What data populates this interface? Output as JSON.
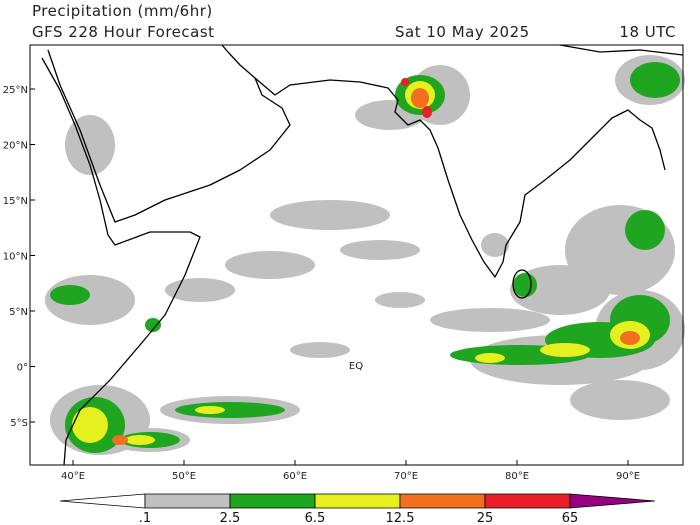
{
  "header": {
    "title": "Precipitation (mm/6hr)",
    "subtitle": "GFS 228 Hour Forecast",
    "date": "Sat 10 May 2025",
    "time": "18 UTC"
  },
  "map": {
    "lat_labels": [
      "25°N",
      "20°N",
      "15°N",
      "10°N",
      "5°N",
      "0°",
      "5°S"
    ],
    "lon_labels": [
      "40°E",
      "50°E",
      "60°E",
      "70°E",
      "80°E",
      "90°E"
    ],
    "equator_label": "EQ"
  },
  "colorbar": {
    "labels": [
      ".1",
      "2.5",
      "6.5",
      "12.5",
      "25",
      "65"
    ],
    "colors": [
      "#ffffff",
      "#c0c0c0",
      "#1fa51f",
      "#e6f01e",
      "#f07020",
      "#e8202a",
      "#990080"
    ]
  }
}
